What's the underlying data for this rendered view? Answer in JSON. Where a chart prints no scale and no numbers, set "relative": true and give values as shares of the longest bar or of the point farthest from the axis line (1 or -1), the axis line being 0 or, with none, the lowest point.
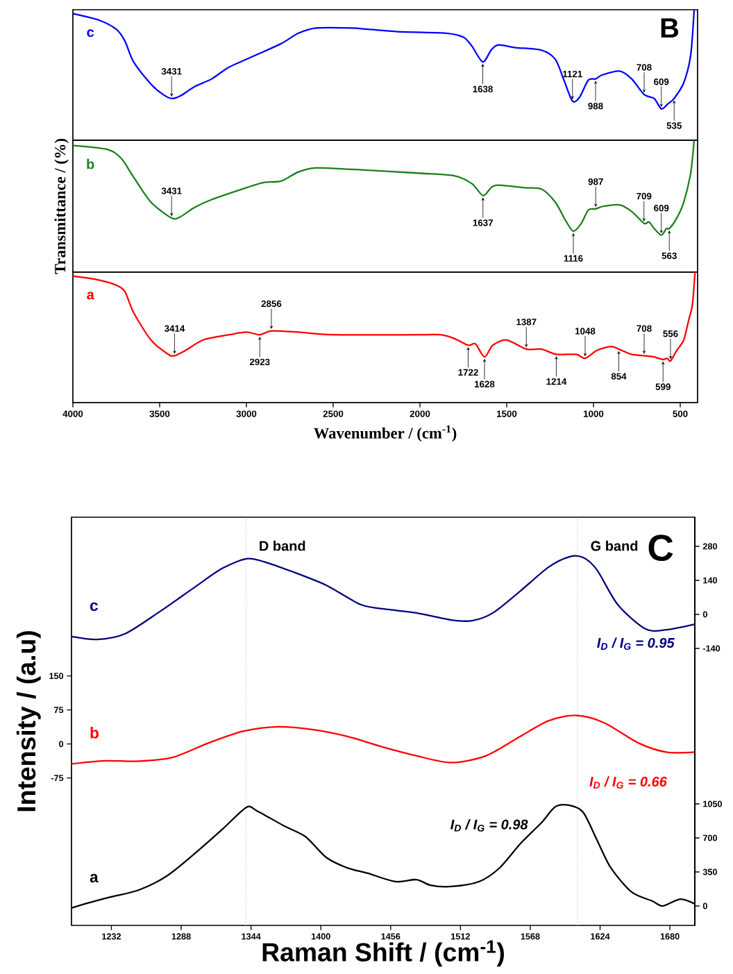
{
  "chart_data": [
    {
      "type": "line",
      "relative": true,
      "xlim": [
        4000,
        400
      ],
      "tick_labels": false,
      "series": [
        {
          "name": "c",
          "color": "#0000ff",
          "x": [
            4000,
            3850,
            3750,
            3700,
            3650,
            3550,
            3480,
            3431,
            3380,
            3300,
            3200,
            3100,
            2950,
            2800,
            2700,
            2600,
            2400,
            2300,
            2100,
            1850,
            1750,
            1700,
            1638,
            1590,
            1550,
            1450,
            1300,
            1220,
            1170,
            1121,
            1080,
            1030,
            988,
            950,
            850,
            780,
            708,
            650,
            609,
            570,
            535,
            480,
            440,
            420
          ],
          "values": [
            0.97,
            0.92,
            0.85,
            0.76,
            0.6,
            0.43,
            0.35,
            0.32,
            0.34,
            0.41,
            0.47,
            0.56,
            0.65,
            0.74,
            0.82,
            0.86,
            0.86,
            0.85,
            0.83,
            0.82,
            0.79,
            0.72,
            0.6,
            0.69,
            0.73,
            0.71,
            0.69,
            0.62,
            0.46,
            0.3,
            0.33,
            0.46,
            0.47,
            0.5,
            0.53,
            0.47,
            0.35,
            0.32,
            0.24,
            0.28,
            0.32,
            0.44,
            0.65,
            1
          ]
        }
      ],
      "annotations": [
        "B",
        {
          "text": "3431",
          "x": 3431,
          "y": 0.32
        },
        {
          "text": "1638",
          "x": 1638,
          "y": 0.6
        },
        {
          "text": "1121",
          "x": 1121,
          "y": 0.3
        },
        {
          "text": "988",
          "x": 988,
          "y": 0.47
        },
        {
          "text": "609",
          "x": 609,
          "y": 0.24
        },
        {
          "text": "535",
          "x": 535,
          "y": 0.32
        },
        {
          "text": "708",
          "x": 708,
          "y": 0.35
        }
      ]
    },
    {
      "type": "line",
      "relative": true,
      "xlim": [
        4000,
        400
      ],
      "tick_labels": false,
      "ylabel": "Transmittance / (%)",
      "series": [
        {
          "name": "b",
          "color": "#1a801a",
          "x": [
            4000,
            3800,
            3720,
            3650,
            3550,
            3431,
            3380,
            3300,
            3200,
            3000,
            2900,
            2800,
            2700,
            2600,
            2400,
            2000,
            1800,
            1700,
            1637,
            1590,
            1550,
            1400,
            1300,
            1220,
            1160,
            1116,
            1070,
            1030,
            987,
            940,
            850,
            780,
            709,
            680,
            650,
            609,
            580,
            563,
            520,
            480,
            440,
            420
          ],
          "values": [
            0.96,
            0.93,
            0.86,
            0.72,
            0.53,
            0.41,
            0.42,
            0.49,
            0.55,
            0.64,
            0.68,
            0.69,
            0.76,
            0.79,
            0.78,
            0.75,
            0.73,
            0.67,
            0.58,
            0.64,
            0.66,
            0.64,
            0.63,
            0.53,
            0.39,
            0.31,
            0.37,
            0.47,
            0.48,
            0.5,
            0.51,
            0.46,
            0.37,
            0.38,
            0.33,
            0.28,
            0.33,
            0.33,
            0.41,
            0.53,
            0.75,
            1
          ]
        }
      ],
      "annotations": [
        {
          "text": "3431",
          "x": 3431,
          "y": 0.41
        },
        {
          "text": "1637",
          "x": 1637,
          "y": 0.58
        },
        {
          "text": "987",
          "x": 987,
          "y": 0.48
        },
        {
          "text": "1116",
          "x": 1116,
          "y": 0.31
        },
        {
          "text": "609",
          "x": 609,
          "y": 0.28
        },
        {
          "text": "563",
          "x": 563,
          "y": 0.33
        },
        {
          "text": "709",
          "x": 709,
          "y": 0.37
        }
      ]
    },
    {
      "type": "line",
      "relative": true,
      "xlim": [
        4000,
        400
      ],
      "xticks": [
        4000,
        3500,
        3000,
        2500,
        2000,
        1500,
        1000,
        500
      ],
      "tick_labels": "x",
      "xlabel": "Wavenumber / (cm$^{-1}$)",
      "series": [
        {
          "name": "a",
          "color": "#ff0000",
          "x": [
            4000,
            3850,
            3750,
            3700,
            3650,
            3550,
            3450,
            3414,
            3350,
            3250,
            3100,
            3000,
            2923,
            2856,
            2700,
            2500,
            2000,
            1880,
            1800,
            1722,
            1680,
            1628,
            1580,
            1500,
            1387,
            1300,
            1214,
            1100,
            1048,
            980,
            900,
            854,
            780,
            708,
            650,
            599,
            575,
            556,
            520,
            480,
            450,
            430,
            415
          ],
          "values": [
            0.97,
            0.94,
            0.9,
            0.85,
            0.69,
            0.48,
            0.37,
            0.36,
            0.4,
            0.48,
            0.52,
            0.54,
            0.52,
            0.55,
            0.54,
            0.52,
            0.52,
            0.52,
            0.49,
            0.44,
            0.45,
            0.35,
            0.44,
            0.48,
            0.41,
            0.41,
            0.37,
            0.37,
            0.34,
            0.4,
            0.43,
            0.41,
            0.37,
            0.36,
            0.35,
            0.33,
            0.34,
            0.32,
            0.4,
            0.48,
            0.64,
            0.75,
            1
          ]
        }
      ],
      "annotations": [
        {
          "text": "3414",
          "x": 3414,
          "y": 0.36
        },
        {
          "text": "2923",
          "x": 2923,
          "y": 0.52
        },
        {
          "text": "2856",
          "x": 2856,
          "y": 0.55
        },
        {
          "text": "1722",
          "x": 1722,
          "y": 0.44
        },
        {
          "text": "1387",
          "x": 1387,
          "y": 0.41
        },
        {
          "text": "1628",
          "x": 1628,
          "y": 0.35
        },
        {
          "text": "1048",
          "x": 1048,
          "y": 0.34
        },
        {
          "text": "1214",
          "x": 1214,
          "y": 0.37
        },
        {
          "text": "708",
          "x": 708,
          "y": 0.36
        },
        {
          "text": "854",
          "x": 854,
          "y": 0.41
        },
        {
          "text": "556",
          "x": 556,
          "y": 0.32
        },
        {
          "text": "599",
          "x": 599,
          "y": 0.33
        }
      ]
    },
    {
      "type": "line",
      "xlabel": "Raman Shift / (cm$^{-1}$)",
      "ylabel": "Intensity / (a.u)",
      "xlim": [
        1200,
        1700
      ],
      "xticks": [
        1232,
        1288,
        1344,
        1400,
        1456,
        1512,
        1568,
        1624,
        1680
      ],
      "ylim": [
        -400,
        500
      ],
      "yticks": [
        -75,
        0,
        75,
        150
      ],
      "y2lim": [
        -1280,
        400
      ],
      "y2ticks": [
        -140,
        0,
        140,
        280
      ],
      "y3lim": [
        -200,
        4000
      ],
      "y3ticks": [
        0,
        350,
        700,
        1050
      ],
      "ref_lines": [
        {
          "axis": "x",
          "value": 1340,
          "label": "D band",
          "line_style": "dotted",
          "color": "#c8c8c8"
        },
        {
          "axis": "x",
          "value": 1606,
          "label": "G band",
          "line_style": "dotted",
          "color": "#c8c8c8"
        }
      ],
      "annotations": [
        "C",
        "I$_{D}$ / I$_{G}$ = 0.95",
        "I$_{D}$ / I$_{G}$ = 0.66",
        "I$_{D}$ / I$_{G}$ = 0.98"
      ],
      "series": [
        {
          "name": "c",
          "color": "#000080",
          "axis": "y2",
          "x": [
            1200,
            1220.6,
            1242.9,
            1270.7,
            1298.6,
            1320.8,
            1340.3,
            1354.2,
            1376.5,
            1404.3,
            1432.2,
            1454.5,
            1476.7,
            1504.6,
            1521.3,
            1538,
            1560.2,
            1582.5,
            1599.2,
            1610.4,
            1621.5,
            1638.2,
            1660.5,
            1677.2,
            1700
          ],
          "values": [
            -91,
            -103,
            -80,
            11,
            111,
            189,
            229,
            217,
            177,
            120,
            40,
            20,
            6,
            -23,
            -26,
            6,
            97,
            194,
            237,
            234,
            183,
            40,
            -60,
            -63,
            -40
          ]
        },
        {
          "name": "b",
          "color": "#ff0000",
          "axis": "y",
          "x": [
            1200,
            1226.2,
            1254,
            1281.8,
            1309.7,
            1337.5,
            1365.4,
            1393.2,
            1421,
            1448.9,
            1476.7,
            1504.6,
            1532.5,
            1560.2,
            1582.5,
            1604.8,
            1627.1,
            1654.9,
            1677.2,
            1700
          ],
          "values": [
            -44,
            -37,
            -38,
            -29,
            2,
            28,
            38,
            32,
            17,
            -6,
            -26,
            -41,
            -26,
            17,
            51,
            63,
            47,
            2,
            -18,
            -18
          ]
        },
        {
          "name": "a",
          "color": "#000000",
          "axis": "y3",
          "x": [
            1200,
            1215,
            1231.7,
            1254,
            1276.3,
            1298.6,
            1320.8,
            1340.3,
            1348.7,
            1370.9,
            1387.6,
            1404.3,
            1421,
            1437.7,
            1460,
            1476.7,
            1487.9,
            1504.6,
            1526.8,
            1543.5,
            1560.2,
            1577,
            1588.1,
            1599.2,
            1610.4,
            1621.5,
            1632.6,
            1649.3,
            1666,
            1674.4,
            1688.3,
            1700
          ],
          "values": [
            -21,
            36,
            93,
            164,
            307,
            536,
            786,
            1014,
            979,
            821,
            714,
            500,
            393,
            336,
            250,
            271,
            214,
            200,
            250,
            393,
            643,
            857,
            1021,
            1036,
            964,
            679,
            393,
            143,
            50,
            0,
            71,
            21
          ]
        }
      ]
    }
  ]
}
